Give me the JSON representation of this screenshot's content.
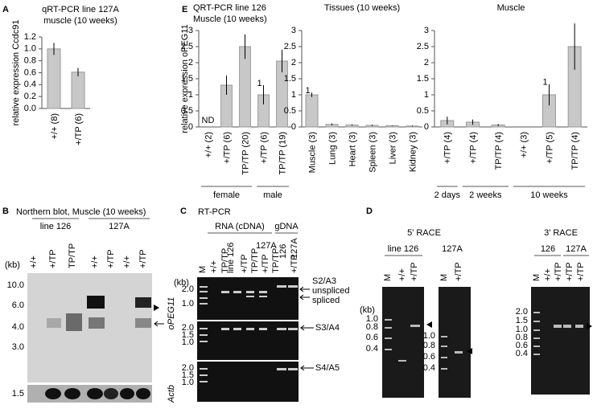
{
  "chart_data": [
    {
      "type": "bar",
      "panel": "A",
      "title": "qRT-PCR line 127A",
      "subtitle": "muscle (10 weeks)",
      "y_label": "relative expression Ccdc91",
      "categories": [
        "+/+ (8)",
        "+/TP (6)"
      ],
      "values": [
        1.0,
        0.61
      ],
      "errors": [
        0.1,
        0.07
      ],
      "color": "#c8c8c8",
      "ylim": [
        0,
        1.2
      ],
      "yticks": [
        {
          "value": 0,
          "label": "0.0"
        },
        0.2,
        0.4,
        0.6,
        0.8,
        {
          "value": 1,
          "label": "1.0"
        },
        1.2
      ]
    },
    {
      "type": "bar",
      "panel": "E",
      "title": "QRT-PCR line 126",
      "subtitle": "Muscle (10 weeks)",
      "y_label": "relative expression oPEG11",
      "color": "#c8c8c8",
      "groups": [
        {
          "name": "female",
          "categories": [
            "+/+ (2)",
            "+/TP (6)",
            "TP/TP (20)"
          ],
          "values": [
            null,
            1.3,
            2.5
          ],
          "errors": [
            null,
            0.3,
            0.38
          ],
          "value_labels": [
            "ND",
            null,
            null
          ]
        },
        {
          "name": "male",
          "categories": [
            "+/TP (6)",
            "TP/TP (19)"
          ],
          "values": [
            1.0,
            2.05
          ],
          "errors": [
            0.3,
            0.35
          ],
          "value_labels": [
            "1",
            null
          ]
        }
      ],
      "ylim": [
        0,
        3
      ],
      "yticks": [
        0,
        0.5,
        1,
        1.5,
        2,
        2.5,
        3
      ]
    },
    {
      "type": "bar",
      "title": "Tissues (10 weeks)",
      "color": "#c8c8c8",
      "categories": [
        "Muscle (3)",
        "Lung (3)",
        "Heart (3)",
        "Spleen (3)",
        "Liver (3)",
        "Kidney (3)"
      ],
      "values": [
        1.0,
        0.08,
        0.06,
        0.05,
        0.04,
        0.03
      ],
      "errors": [
        0.07,
        0.03,
        0.02,
        0.02,
        0.01,
        0.01
      ],
      "value_labels": [
        "1",
        null,
        null,
        null,
        null,
        null
      ],
      "ylim": [
        0,
        3
      ],
      "yticks": [
        0,
        0.5,
        1,
        1.5,
        2,
        2.5,
        3
      ]
    },
    {
      "type": "bar",
      "title": "Muscle",
      "color": "#c8c8c8",
      "groups": [
        {
          "name": "2 days",
          "categories": [
            "+/TP (4)"
          ],
          "values": [
            0.2
          ],
          "errors": [
            0.12
          ],
          "value_labels": [
            null
          ]
        },
        {
          "name": "2 weeks",
          "categories": [
            "+/TP (4)",
            "TP/TP (4)"
          ],
          "values": [
            0.15,
            0.06
          ],
          "errors": [
            0.08,
            0.03
          ],
          "value_labels": [
            null,
            null
          ]
        },
        {
          "name": "10 weeks",
          "categories": [
            "+/+ (3)",
            "+/TP (5)",
            "TP/TP (4)"
          ],
          "values": [
            null,
            1.0,
            2.5
          ],
          "errors": [
            null,
            0.33,
            0.72
          ],
          "value_labels": [
            null,
            "1",
            null
          ]
        }
      ],
      "ylim": [
        0,
        3
      ],
      "yticks": [
        0,
        0.5,
        1,
        1.5,
        2,
        2.5,
        3
      ]
    }
  ],
  "panels": {
    "B": {
      "letter": "B",
      "title": "Northern blot, Muscle (10 weeks)",
      "groups": [
        "line 126",
        "127A"
      ],
      "lanes": [
        "+/+",
        "+/TP",
        "TP/TP",
        "+/+",
        "+/TP",
        "+/+",
        "+/TP"
      ],
      "unit": "(kb)",
      "markers": [
        "10.0",
        "6.0",
        "4.0",
        "3.0"
      ],
      "actb_marker": "1.5",
      "genes": [
        "oPEG11",
        "Actb"
      ]
    },
    "C": {
      "letter": "C",
      "title": "RT-PCR",
      "groups": [
        "RNA (cDNA)",
        "gDNA"
      ],
      "subgroups": [
        "line 126",
        "127A"
      ],
      "lanes": [
        "M",
        "+/+",
        "TP/TP",
        "+/TP",
        "TP/TP",
        "+/TP",
        "TP/TP",
        "+/TP"
      ],
      "gdna_lanes": [
        "126",
        "127A"
      ],
      "unit": "(kb)",
      "rows": [
        {
          "markers": [
            "2.0",
            "1.0"
          ],
          "labels": [
            "S2/A3",
            "unspliced",
            "spliced"
          ]
        },
        {
          "markers": [
            "2.0",
            "1.5",
            "1.0"
          ],
          "labels": [
            "S3/A4"
          ]
        },
        {
          "markers": [
            "2.0",
            "1.5",
            "1.0"
          ],
          "labels": [
            "S4/A5"
          ]
        }
      ]
    },
    "D": {
      "letter": "D",
      "unit": "(kb)",
      "gels": [
        {
          "title": "5' RACE",
          "group": "line 126",
          "lanes": [
            "M",
            "+/+",
            "+/TP"
          ],
          "markers": [
            "1.0",
            "0.8",
            "0.6",
            "0.4"
          ]
        },
        {
          "group": "127A",
          "lanes": [
            "M",
            "+/TP"
          ],
          "markers": [
            "1.0",
            "0.8",
            "0.6",
            "0.4"
          ]
        },
        {
          "title": "3' RACE",
          "groups": [
            "126",
            "127A"
          ],
          "lanes": [
            "M",
            "+/+",
            "+/TP",
            "+/TP",
            "+/TP"
          ],
          "markers": [
            "2.0",
            "1.5",
            "1.0",
            "0.8",
            "0.6",
            "0.4"
          ]
        }
      ]
    }
  }
}
